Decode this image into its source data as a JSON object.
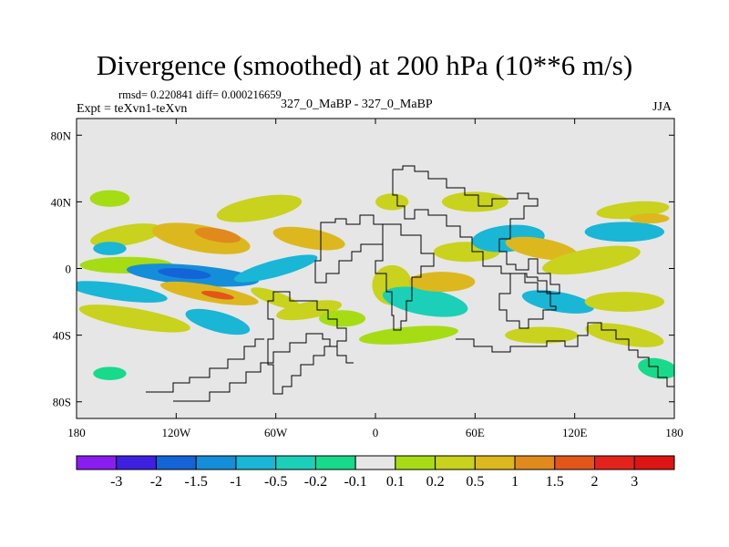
{
  "chart_data": {
    "type": "contour-map",
    "title": "Divergence (smoothed) at 200 hPa (10**6 m/s)",
    "stats_text": "rmsd= 0.220841  diff= 0.000216659",
    "left_label": "Expt = teXvn1-teXvn",
    "center_label": "327_0_MaBP - 327_0_MaBP",
    "right_label": "JJA",
    "xlim": [
      -180,
      180
    ],
    "ylim": [
      -90,
      90
    ],
    "x_ticks": [
      {
        "value": -180,
        "label": "180"
      },
      {
        "value": -120,
        "label": "120W"
      },
      {
        "value": -60,
        "label": "60W"
      },
      {
        "value": 0,
        "label": "0"
      },
      {
        "value": 60,
        "label": "60E"
      },
      {
        "value": 120,
        "label": "120E"
      },
      {
        "value": 180,
        "label": "180"
      }
    ],
    "y_ticks": [
      {
        "value": 80,
        "label": "80N"
      },
      {
        "value": 40,
        "label": "40N"
      },
      {
        "value": 0,
        "label": "0"
      },
      {
        "value": -40,
        "label": "40S"
      },
      {
        "value": -80,
        "label": "80S"
      }
    ],
    "colorbar": {
      "levels": [
        "-3",
        "-2",
        "-1.5",
        "-1",
        "-0.5",
        "-0.2",
        "-0.1",
        "0.1",
        "0.2",
        "0.5",
        "1",
        "1.5",
        "2",
        "3"
      ],
      "colors": [
        "#8a1cf0",
        "#3d20e0",
        "#1464d8",
        "#148ed8",
        "#19b6d6",
        "#1ccfb8",
        "#17da8a",
        "#e6e6e6",
        "#a6dc14",
        "#c9d21c",
        "#dcb81e",
        "#e08a1c",
        "#e2561c",
        "#e3221c",
        "#dc1414"
      ]
    },
    "blobs": [
      {
        "lon": -160,
        "lat": 42,
        "rx": 12,
        "ry": 5,
        "rot": 0,
        "level": 8
      },
      {
        "lon": -150,
        "lat": 20,
        "rx": 22,
        "ry": 6,
        "rot": -10,
        "level": 9
      },
      {
        "lon": -160,
        "lat": 12,
        "rx": 10,
        "ry": 4,
        "rot": 0,
        "level": 4
      },
      {
        "lon": -105,
        "lat": 18,
        "rx": 30,
        "ry": 8,
        "rot": 10,
        "level": 10
      },
      {
        "lon": -95,
        "lat": 20,
        "rx": 14,
        "ry": 4,
        "rot": 10,
        "level": 11
      },
      {
        "lon": -70,
        "lat": 36,
        "rx": 26,
        "ry": 7,
        "rot": -10,
        "level": 9
      },
      {
        "lon": -40,
        "lat": 18,
        "rx": 22,
        "ry": 6,
        "rot": 10,
        "level": 10
      },
      {
        "lon": -150,
        "lat": 2,
        "rx": 28,
        "ry": 5,
        "rot": 0,
        "level": 8
      },
      {
        "lon": -110,
        "lat": -4,
        "rx": 40,
        "ry": 6,
        "rot": 5,
        "level": 3
      },
      {
        "lon": -115,
        "lat": -3,
        "rx": 16,
        "ry": 3,
        "rot": 5,
        "level": 2
      },
      {
        "lon": -60,
        "lat": 0,
        "rx": 26,
        "ry": 5,
        "rot": -15,
        "level": 4
      },
      {
        "lon": -155,
        "lat": -14,
        "rx": 30,
        "ry": 5,
        "rot": 8,
        "level": 4
      },
      {
        "lon": -100,
        "lat": -15,
        "rx": 30,
        "ry": 5,
        "rot": 10,
        "level": 10
      },
      {
        "lon": -95,
        "lat": -16,
        "rx": 10,
        "ry": 2,
        "rot": 10,
        "level": 12
      },
      {
        "lon": -60,
        "lat": -18,
        "rx": 16,
        "ry": 4,
        "rot": 20,
        "level": 9
      },
      {
        "lon": -145,
        "lat": -30,
        "rx": 34,
        "ry": 6,
        "rot": 10,
        "level": 9
      },
      {
        "lon": -95,
        "lat": -32,
        "rx": 20,
        "ry": 6,
        "rot": 15,
        "level": 4
      },
      {
        "lon": -40,
        "lat": -25,
        "rx": 20,
        "ry": 5,
        "rot": -10,
        "level": 9
      },
      {
        "lon": -20,
        "lat": -30,
        "rx": 14,
        "ry": 5,
        "rot": 0,
        "level": 8
      },
      {
        "lon": -160,
        "lat": -63,
        "rx": 10,
        "ry": 4,
        "rot": 0,
        "level": 6
      },
      {
        "lon": 10,
        "lat": 40,
        "rx": 10,
        "ry": 5,
        "rot": 0,
        "level": 9
      },
      {
        "lon": 10,
        "lat": -10,
        "rx": 12,
        "ry": 12,
        "rot": 0,
        "level": 9
      },
      {
        "lon": 30,
        "lat": -20,
        "rx": 26,
        "ry": 8,
        "rot": 10,
        "level": 5
      },
      {
        "lon": 55,
        "lat": 10,
        "rx": 20,
        "ry": 6,
        "rot": 0,
        "level": 9
      },
      {
        "lon": 80,
        "lat": 18,
        "rx": 22,
        "ry": 8,
        "rot": -5,
        "level": 4
      },
      {
        "lon": 100,
        "lat": 12,
        "rx": 22,
        "ry": 6,
        "rot": 10,
        "level": 10
      },
      {
        "lon": 130,
        "lat": 5,
        "rx": 30,
        "ry": 7,
        "rot": -10,
        "level": 9
      },
      {
        "lon": 150,
        "lat": 22,
        "rx": 24,
        "ry": 6,
        "rot": 0,
        "level": 4
      },
      {
        "lon": 155,
        "lat": 35,
        "rx": 22,
        "ry": 5,
        "rot": -5,
        "level": 9
      },
      {
        "lon": 165,
        "lat": 30,
        "rx": 12,
        "ry": 3,
        "rot": 0,
        "level": 10
      },
      {
        "lon": 60,
        "lat": 40,
        "rx": 20,
        "ry": 6,
        "rot": 0,
        "level": 9
      },
      {
        "lon": 40,
        "lat": -8,
        "rx": 20,
        "ry": 6,
        "rot": 0,
        "level": 10
      },
      {
        "lon": 110,
        "lat": -20,
        "rx": 22,
        "ry": 6,
        "rot": 10,
        "level": 4
      },
      {
        "lon": 150,
        "lat": -20,
        "rx": 24,
        "ry": 6,
        "rot": 0,
        "level": 9
      },
      {
        "lon": 100,
        "lat": -40,
        "rx": 22,
        "ry": 5,
        "rot": 0,
        "level": 9
      },
      {
        "lon": 20,
        "lat": -40,
        "rx": 30,
        "ry": 5,
        "rot": -5,
        "level": 8
      },
      {
        "lon": 150,
        "lat": -40,
        "rx": 24,
        "ry": 6,
        "rot": 10,
        "level": 9
      },
      {
        "lon": 170,
        "lat": -60,
        "rx": 12,
        "ry": 6,
        "rot": 10,
        "level": 6
      }
    ]
  }
}
